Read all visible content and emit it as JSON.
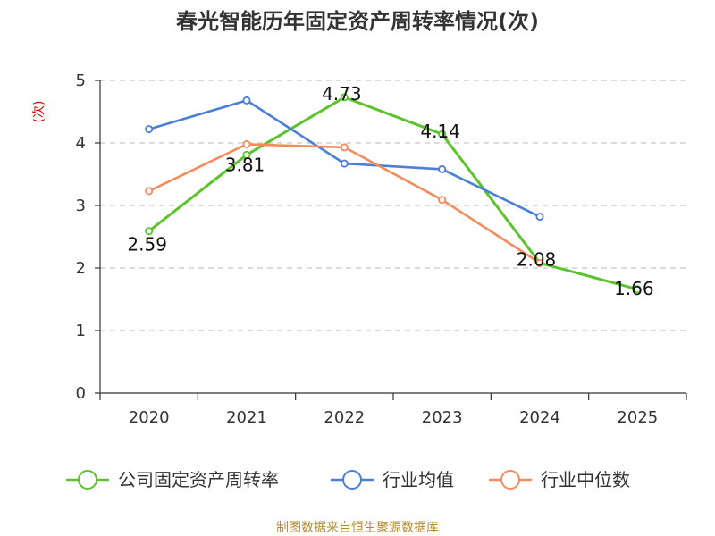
{
  "chart_data": {
    "type": "line",
    "title": "春光智能历年固定资产周转率情况(次)",
    "ylabel": "(次)",
    "xlabel": "",
    "categories": [
      "2020",
      "2021",
      "2022",
      "2023",
      "2024",
      "2025"
    ],
    "ylim": [
      0,
      5
    ],
    "yticks": [
      "0",
      "1",
      "2",
      "3",
      "4",
      "5"
    ],
    "grid": true,
    "legend_position": "bottom",
    "series": [
      {
        "name": "公司固定资产周转率",
        "color": "#5bc42c",
        "values": [
          2.59,
          3.81,
          4.73,
          4.14,
          2.08,
          1.66
        ],
        "labels": [
          "2.59",
          "3.81",
          "4.73",
          "4.14",
          "2.08",
          "1.66"
        ]
      },
      {
        "name": "行业均值",
        "color": "#4a7fd9",
        "values": [
          4.22,
          4.68,
          3.67,
          3.58,
          2.82,
          null
        ]
      },
      {
        "name": "行业中位数",
        "color": "#f48c5c",
        "values": [
          3.23,
          3.98,
          3.93,
          3.09,
          2.08,
          null
        ]
      }
    ],
    "source": "制图数据来自恒生聚源数据库"
  }
}
